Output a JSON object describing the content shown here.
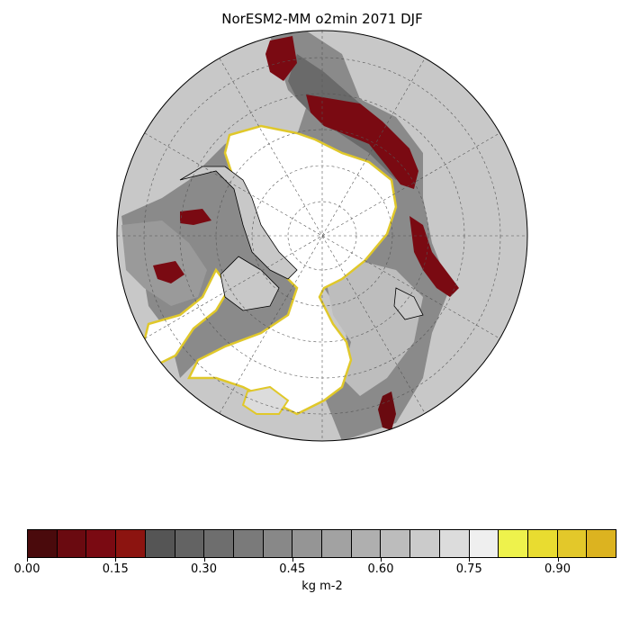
{
  "title": "NorESM2-MM o2min 2071 DJF",
  "map": {
    "projection": "north polar stereographic",
    "land_color": "#c8c8c8",
    "gridlines": "dashed"
  },
  "colorbar": {
    "units": "kg m-2",
    "ticks": [
      "0.00",
      "0.15",
      "0.30",
      "0.45",
      "0.60",
      "0.75",
      "0.90"
    ],
    "min": 0.0,
    "max": 1.0,
    "colors": [
      "#4a0a0c",
      "#6a0a10",
      "#7a0a12",
      "#8c1410",
      "#555555",
      "#636363",
      "#6e6e6e",
      "#7a7a7a",
      "#888888",
      "#959595",
      "#a2a2a2",
      "#afafaf",
      "#bcbcbc",
      "#cbcbcb",
      "#dcdcdc",
      "#efefef",
      "#eef24c",
      "#e9dc30",
      "#e3c82a",
      "#dcb320"
    ]
  }
}
